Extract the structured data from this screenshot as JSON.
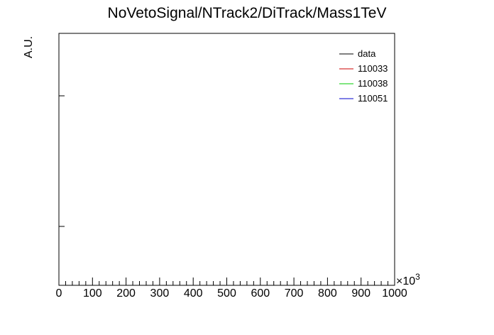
{
  "chart_data": {
    "type": "line",
    "title": "NoVetoSignal/NTrack2/DiTrack/Mass1TeV",
    "xlabel": "",
    "ylabel": "A.U.",
    "x_exponent_label": "×10",
    "x_exponent_power": "3",
    "xlim": [
      0,
      1000
    ],
    "x_tick_labels": [
      "0",
      "100",
      "200",
      "300",
      "400",
      "500",
      "600",
      "700",
      "800",
      "900",
      "1000"
    ],
    "x_ticks": [
      0,
      100,
      200,
      300,
      400,
      500,
      600,
      700,
      800,
      900,
      1000
    ],
    "grid": false,
    "legend_position": "top-right",
    "series": [
      {
        "name": "data",
        "color": "#000000",
        "values": []
      },
      {
        "name": "110033",
        "color": "#cc0000",
        "values": []
      },
      {
        "name": "110038",
        "color": "#00cc00",
        "values": []
      },
      {
        "name": "110051",
        "color": "#0000cc",
        "values": []
      }
    ]
  }
}
